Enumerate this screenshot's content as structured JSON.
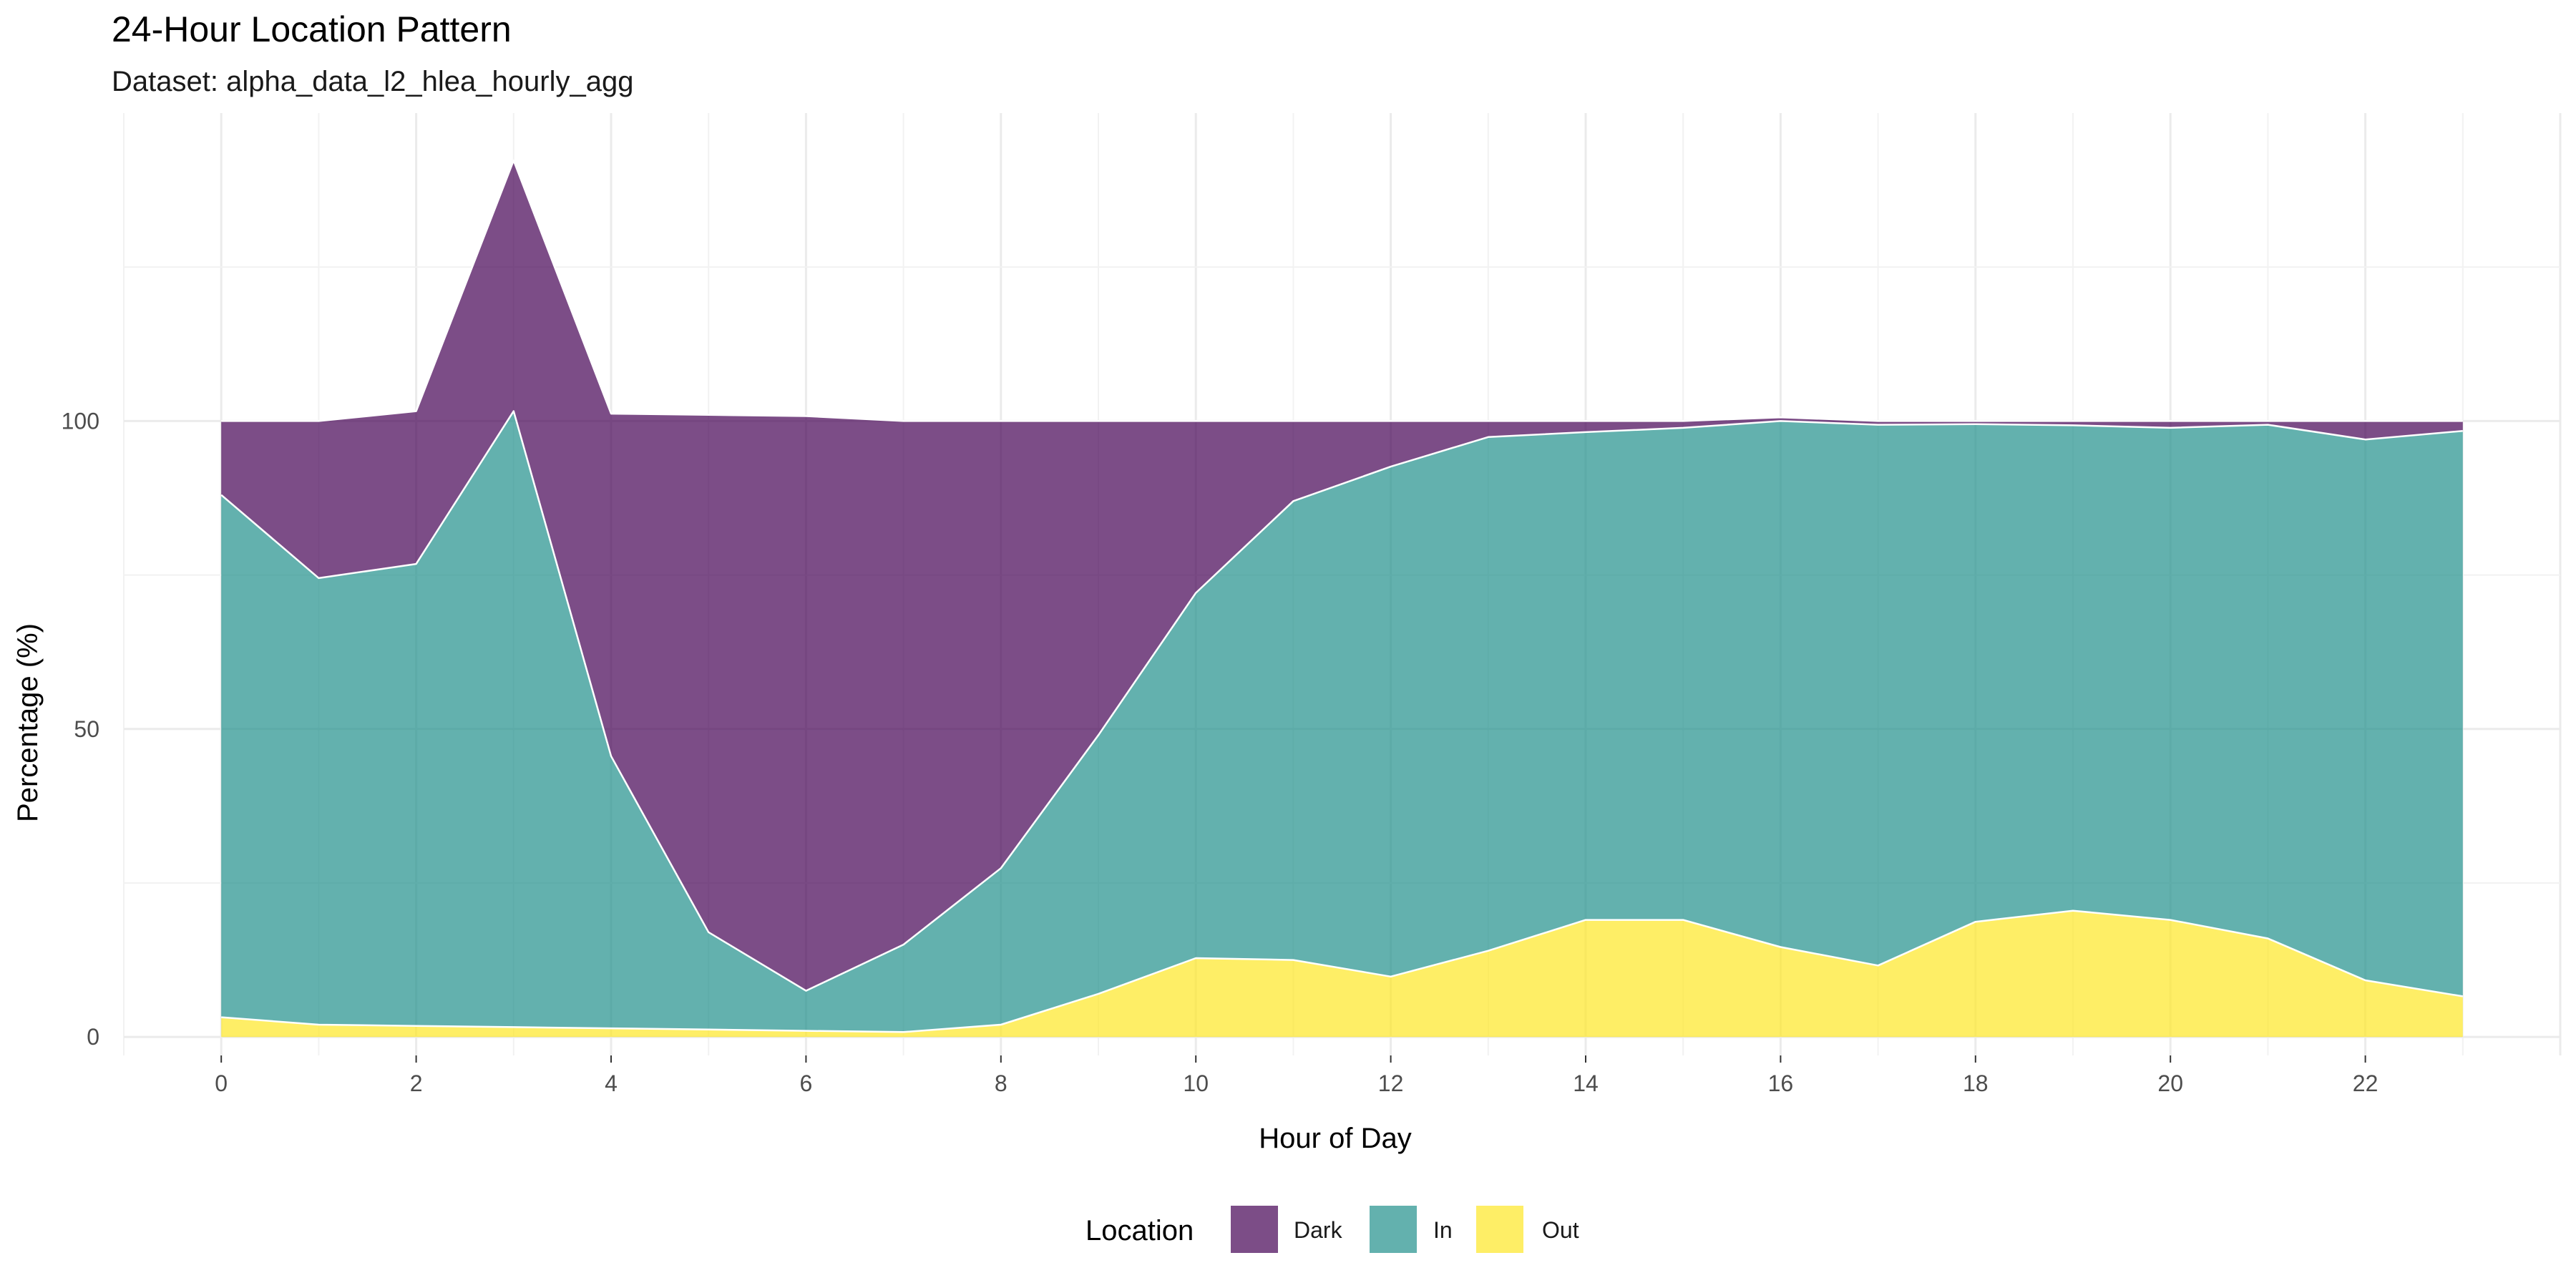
{
  "chart_data": {
    "type": "area",
    "stacked": true,
    "title": "24-Hour Location Pattern",
    "subtitle": "Dataset: alpha_data_l2_hlea_hourly_agg",
    "xlabel": "Hour of Day",
    "ylabel": "Percentage (%)",
    "x": [
      0,
      1,
      2,
      3,
      4,
      5,
      6,
      7,
      8,
      9,
      10,
      11,
      12,
      13,
      14,
      15,
      16,
      17,
      18,
      19,
      20,
      21,
      22,
      23
    ],
    "xlim": [
      -1,
      24
    ],
    "ylim": [
      -3,
      150
    ],
    "x_ticks": [
      "0",
      "2",
      "4",
      "6",
      "8",
      "10",
      "12",
      "14",
      "16",
      "18",
      "20",
      "22"
    ],
    "y_ticks": [
      "0",
      "50",
      "100"
    ],
    "grid": true,
    "legend_position": "bottom",
    "legend_title": "Location",
    "series": [
      {
        "name": "Out",
        "color": "#FDE725",
        "values": [
          3.2,
          2.0,
          1.8,
          1.6,
          1.4,
          1.2,
          1.0,
          0.8,
          2.0,
          7.0,
          12.8,
          12.5,
          9.8,
          14.0,
          19.0,
          19.0,
          14.6,
          11.6,
          18.7,
          20.5,
          19.0,
          16.0,
          9.2,
          6.6
        ]
      },
      {
        "name": "In",
        "color": "#21908C",
        "values": [
          84.8,
          72.5,
          75.0,
          100.0,
          44.2,
          15.8,
          6.5,
          14.2,
          25.4,
          42.0,
          59.3,
          74.5,
          82.8,
          83.4,
          79.2,
          79.9,
          85.4,
          87.8,
          80.8,
          78.8,
          79.9,
          83.4,
          87.8,
          91.8
        ]
      },
      {
        "name": "Dark",
        "color": "#440154",
        "values": [
          12.0,
          25.5,
          24.8,
          40.7,
          55.6,
          84.0,
          93.3,
          85.0,
          72.6,
          51.0,
          27.9,
          13.0,
          7.4,
          2.6,
          1.8,
          1.1,
          0.6,
          0.6,
          0.5,
          0.7,
          1.1,
          0.6,
          3.0,
          1.6
        ]
      }
    ]
  },
  "legend": {
    "title": "Location",
    "items": [
      {
        "label": "Dark",
        "color": "#440154"
      },
      {
        "label": "In",
        "color": "#21908C"
      },
      {
        "label": "Out",
        "color": "#FDE725"
      }
    ]
  }
}
